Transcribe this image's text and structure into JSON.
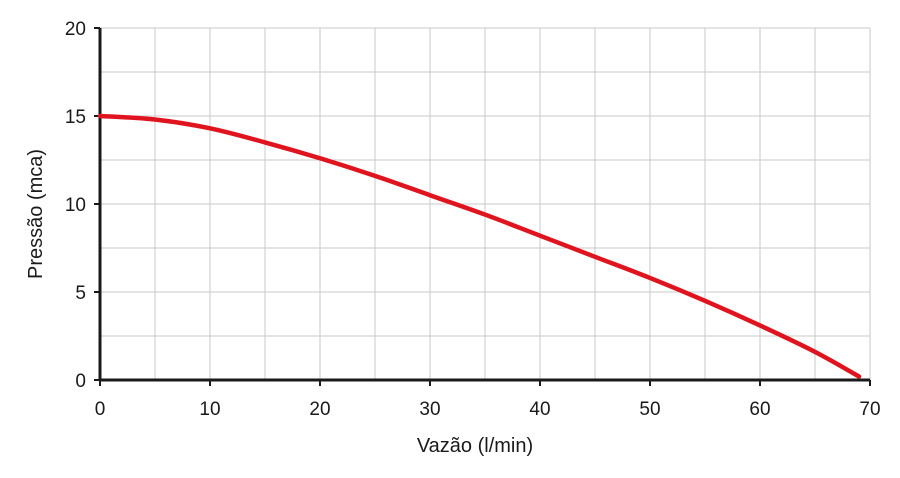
{
  "chart_data": {
    "type": "line",
    "xlabel": "Vazão (l/min)",
    "ylabel": "Pressão (mca)",
    "xlim": [
      0,
      70
    ],
    "ylim": [
      0,
      20
    ],
    "xticks": [
      0,
      10,
      20,
      30,
      40,
      50,
      60,
      70
    ],
    "yticks": [
      0,
      5,
      10,
      15,
      20
    ],
    "xtick_labels": [
      "0",
      "10",
      "20",
      "30",
      "40",
      "50",
      "60",
      "70"
    ],
    "ytick_labels": [
      "0",
      "5",
      "10",
      "15",
      "20"
    ],
    "grid": true,
    "series": [
      {
        "color": "#e0141e",
        "x": [
          0,
          5,
          10,
          15,
          20,
          25,
          30,
          35,
          40,
          45,
          50,
          55,
          60,
          65,
          69
        ],
        "y": [
          15,
          14.8,
          14.3,
          13.5,
          12.6,
          11.6,
          10.5,
          9.4,
          8.2,
          7.0,
          5.8,
          4.5,
          3.1,
          1.6,
          0.2
        ]
      }
    ]
  }
}
